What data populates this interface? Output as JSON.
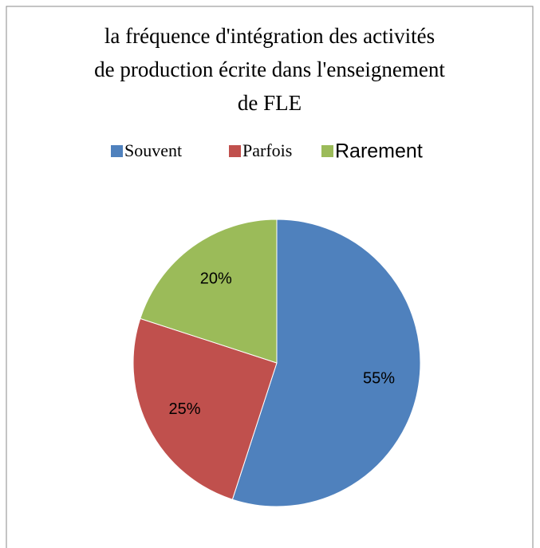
{
  "chart_data": {
    "type": "pie",
    "title": [
      "la fréquence d'intégration des activités",
      "de production écrite dans l'enseignement",
      "de FLE"
    ],
    "categories": [
      "Souvent",
      "Parfois",
      "Rarement"
    ],
    "values": [
      55,
      25,
      20
    ],
    "value_labels": [
      "55%",
      "25%",
      "20%"
    ],
    "colors": [
      "#4f81bd",
      "#c0504d",
      "#9bbb59"
    ],
    "legend": "top"
  }
}
